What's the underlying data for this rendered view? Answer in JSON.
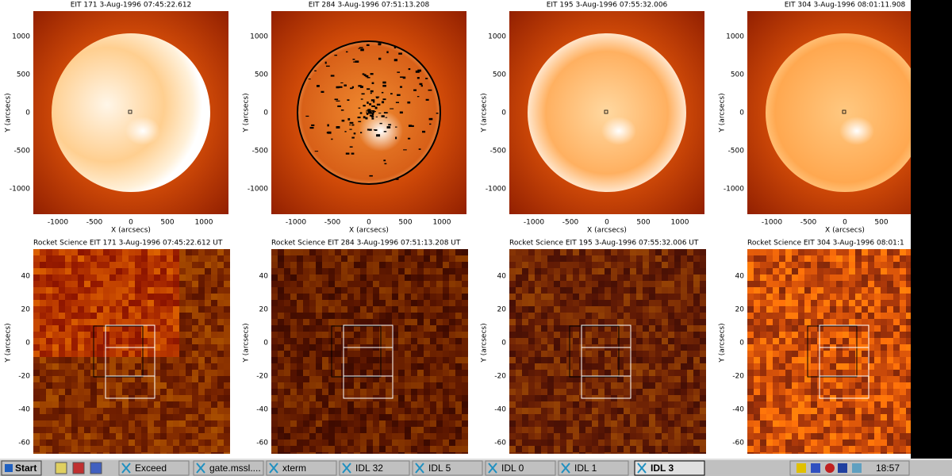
{
  "panels": [
    {
      "title": "EIT 171   3-Aug-1996 07:45:22.612",
      "y_label": "Y (arcsecs)",
      "x_label": "X (arcsecs)",
      "x_ticks": [
        -1000,
        -500,
        0,
        500,
        1000
      ],
      "y_ticks": [
        1000,
        500,
        0,
        -500,
        -1000
      ]
    },
    {
      "title": "EIT 284   3-Aug-1996 07:51:13.208",
      "y_label": "Y (arcsecs)",
      "x_label": "X (arcsecs)",
      "x_ticks": [
        -1000,
        -500,
        0,
        500,
        1000
      ],
      "y_ticks": [
        1000,
        500,
        0,
        -500,
        -1000
      ]
    },
    {
      "title": "EIT 195   3-Aug-1996 07:55:32.006",
      "y_label": "Y (arcsecs)",
      "x_label": "X (arcsecs)",
      "x_ticks": [
        -1000,
        -500,
        0,
        500,
        1000
      ],
      "y_ticks": [
        1000,
        500,
        0,
        -500,
        -1000
      ]
    },
    {
      "title": "EIT 304   3-Aug-1996 08:01:11.908",
      "y_label": "Y (arcsecs)",
      "x_label": "X (arcsecs)",
      "x_ticks": [
        -1000,
        -500,
        0,
        500
      ],
      "y_ticks": [
        1000,
        500,
        0,
        -500,
        -1000
      ]
    }
  ],
  "zoom_panels": [
    {
      "title": "Rocket Science EIT 171   3-Aug-1996 07:45:22.612 UT",
      "y_label": "Y (arcsecs)",
      "y_ticks": [
        40,
        20,
        0,
        -20,
        -40,
        -60
      ]
    },
    {
      "title": "Rocket Science EIT 284   3-Aug-1996 07:51:13.208 UT",
      "y_label": "Y (arcsecs)",
      "y_ticks": [
        40,
        20,
        0,
        -20,
        -40,
        -60
      ]
    },
    {
      "title": "Rocket Science EIT 195   3-Aug-1996 07:55:32.006 UT",
      "y_label": "Y (arcsecs)",
      "y_ticks": [
        40,
        20,
        0,
        -20,
        -40,
        -60
      ]
    },
    {
      "title": "Rocket Science EIT 304   3-Aug-1996 08:01:1",
      "y_label": "Y (arcsecs)",
      "y_ticks": [
        40,
        20,
        0,
        -20,
        -40,
        -60
      ]
    }
  ],
  "taskbar": {
    "start": "Start",
    "buttons": [
      "Exceed",
      "gate.mssl....",
      "xterm",
      "IDL 32",
      "IDL 5",
      "IDL 0",
      "IDL 1",
      "IDL 3"
    ],
    "clock": "18:57"
  }
}
